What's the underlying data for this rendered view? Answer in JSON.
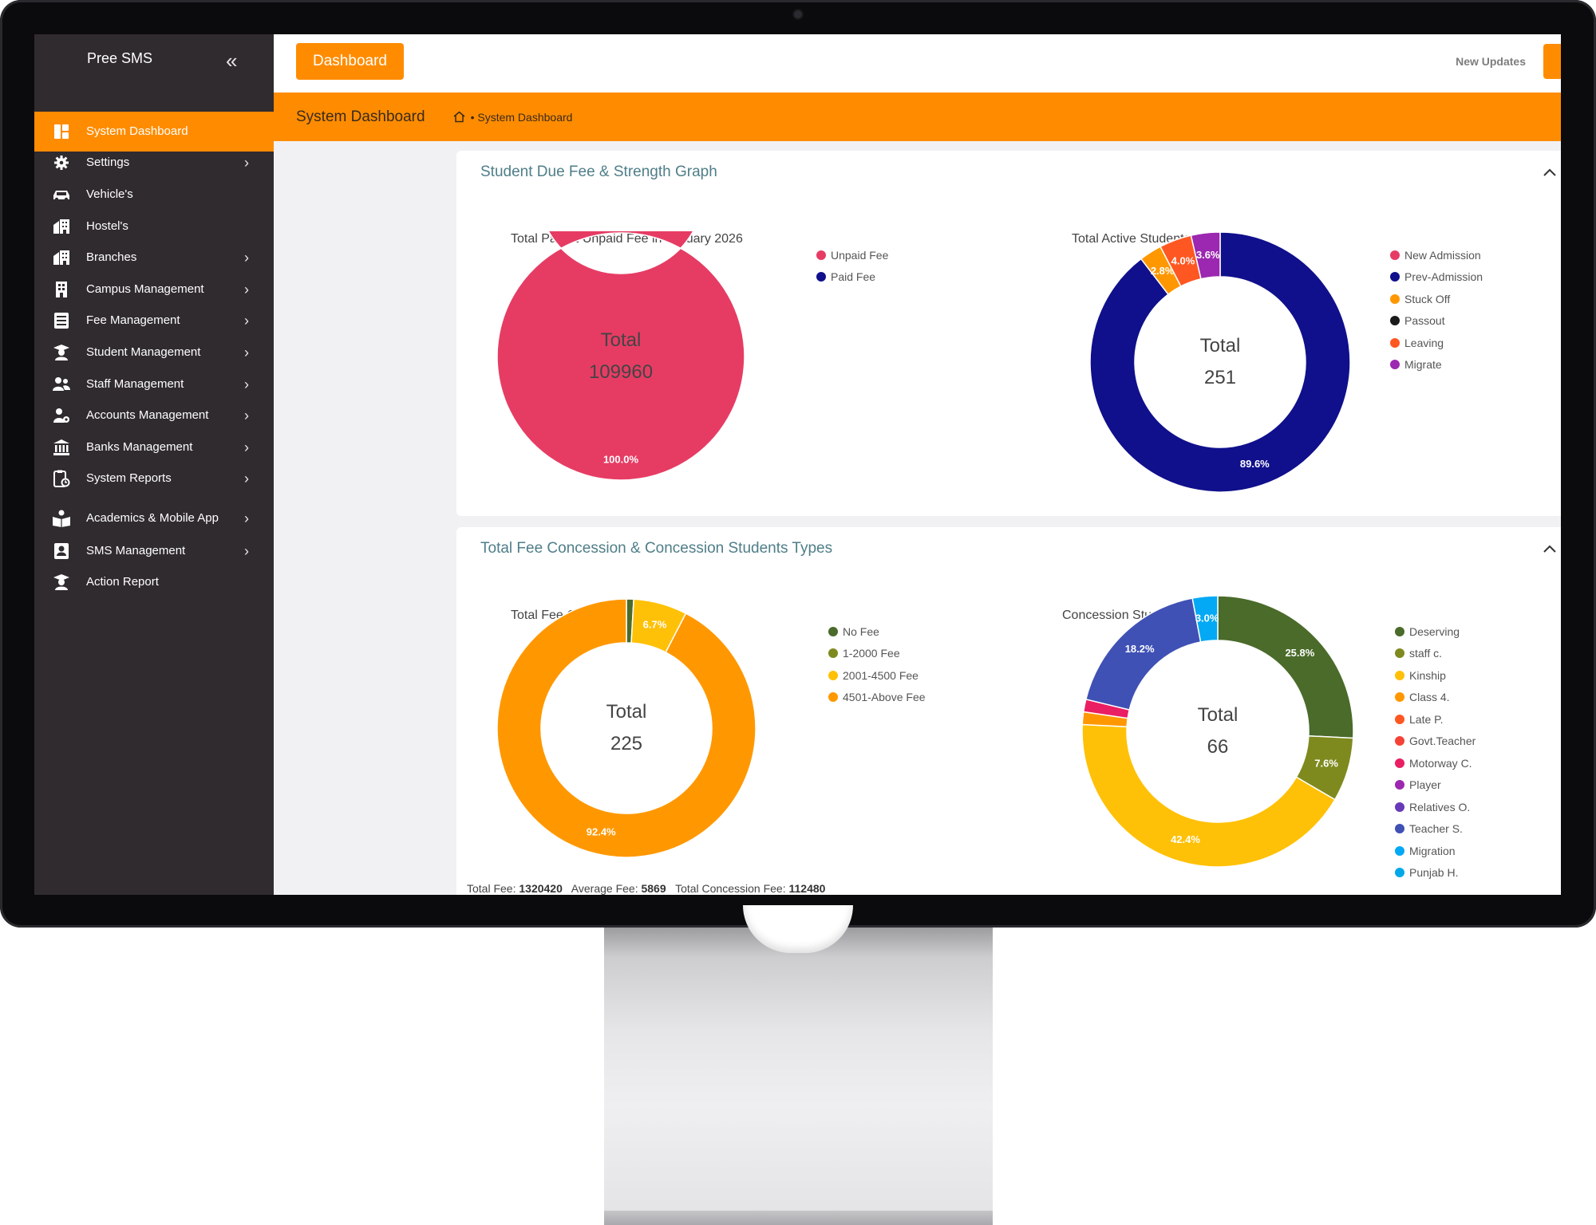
{
  "sidebar": {
    "brand": "Pree SMS",
    "items": [
      {
        "label": "System Dashboard",
        "icon": "dashboard-icon",
        "active": true,
        "chevron": false
      },
      {
        "label": "Settings",
        "icon": "gear-icon",
        "chevron": true
      },
      {
        "label": "Vehicle's",
        "icon": "car-icon",
        "chevron": false
      },
      {
        "label": "Hostel's",
        "icon": "building-icon",
        "chevron": false
      },
      {
        "label": "Branches",
        "icon": "building-icon",
        "chevron": true
      },
      {
        "label": "Campus Management",
        "icon": "campus-icon",
        "chevron": true
      },
      {
        "label": "Fee Management",
        "icon": "list-icon",
        "chevron": true
      },
      {
        "label": "Student Management",
        "icon": "graduate-icon",
        "chevron": true
      },
      {
        "label": "Staff Management",
        "icon": "users-icon",
        "chevron": true
      },
      {
        "label": "Accounts Management",
        "icon": "user-gear-icon",
        "chevron": true
      },
      {
        "label": "Banks Management",
        "icon": "bank-icon",
        "chevron": true
      },
      {
        "label": "System Reports",
        "icon": "report-icon",
        "chevron": true
      },
      {
        "label": "Academics & Mobile App",
        "icon": "book-icon",
        "chevron": true
      },
      {
        "label": "SMS Management",
        "icon": "contact-icon",
        "chevron": true
      },
      {
        "label": "Action Report",
        "icon": "graduate-icon",
        "chevron": false
      }
    ]
  },
  "topbar": {
    "button_label": "Dashboard",
    "updates_label": "New Updates"
  },
  "breadcrumb": {
    "title": "System Dashboard",
    "path": "• System Dashboard"
  },
  "cards": [
    {
      "title": "Student Due Fee & Strength Graph",
      "toggle": "^"
    },
    {
      "title": "Total Fee Concession & Concession Students Types",
      "toggle": "^"
    }
  ],
  "chart_data": [
    {
      "type": "pie",
      "title": "Total Paid & Unpaid Fee in January 2026",
      "center_label": "Total",
      "center_value": "109960",
      "labels": [
        "Unpaid Fee",
        "Paid Fee"
      ],
      "values": [
        100.0,
        0.0
      ],
      "pct_labels": [
        "100.0%",
        ""
      ],
      "colors": [
        "#e63c64",
        "#10108c"
      ]
    },
    {
      "type": "pie",
      "title": "Total Active Students: 225",
      "center_label": "Total",
      "center_value": "251",
      "labels": [
        "New Admission",
        "Prev-Admission",
        "Stuck Off",
        "Passout",
        "Leaving",
        "Migrate"
      ],
      "values": [
        0.0,
        89.6,
        2.8,
        0.0,
        4.0,
        3.6
      ],
      "pct_labels": [
        "",
        "89.6%",
        "2.8%",
        "",
        "4.0%",
        "3.6%"
      ],
      "colors": [
        "#e63c64",
        "#10108c",
        "#ff9800",
        "#1a1a1a",
        "#ff5722",
        "#9c27b0"
      ]
    },
    {
      "type": "pie",
      "title": "Total Fee Concession",
      "center_label": "Total",
      "center_value": "225",
      "labels": [
        "No Fee",
        "1-2000 Fee",
        "2001-4500 Fee",
        "4501-Above Fee"
      ],
      "values": [
        0.9,
        0.0,
        6.7,
        92.4
      ],
      "pct_labels": [
        "",
        "",
        "6.7%",
        "92.4%"
      ],
      "colors": [
        "#4a6b2a",
        "#7e8a1e",
        "#ffc107",
        "#ff9800"
      ]
    },
    {
      "type": "pie",
      "title": "Concession Students Types",
      "center_label": "Total",
      "center_value": "66",
      "labels": [
        "Deserving",
        "staff c.",
        "Kinship",
        "Class 4.",
        "Late P.",
        "Govt.Teacher",
        "Motorway C.",
        "Player",
        "Relatives O.",
        "Teacher S.",
        "Migration",
        "Punjab H."
      ],
      "values": [
        25.8,
        7.6,
        42.4,
        1.5,
        0.0,
        0.0,
        1.5,
        0.0,
        0.0,
        18.2,
        3.0,
        0.0
      ],
      "pct_labels": [
        "25.8%",
        "7.6%",
        "42.4%",
        "",
        "",
        "",
        "",
        "",
        "",
        "18.2%",
        "3.0%",
        ""
      ],
      "colors": [
        "#4a6b2a",
        "#7e8a1e",
        "#ffc107",
        "#ff9800",
        "#ff5722",
        "#f44336",
        "#e91e63",
        "#9c27b0",
        "#673ab7",
        "#3f51b5",
        "#03a9f4",
        "#00a8e8"
      ]
    }
  ],
  "summary": {
    "total_fee_label": "Total Fee:",
    "total_fee": "1320420",
    "average_fee_label": "Average Fee:",
    "average_fee": "5869",
    "total_concession_label": "Total Concession Fee:",
    "total_concession": "112480"
  }
}
